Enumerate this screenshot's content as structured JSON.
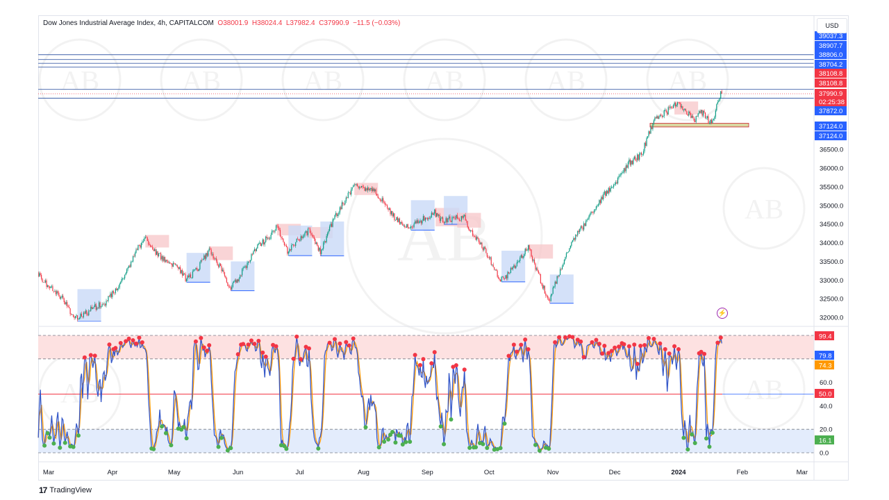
{
  "header": {
    "symbol": "Dow Jones Industrial Average Index, 4h, CAPITALCOM",
    "open": "O38001.9",
    "high": "H38024.4",
    "low": "L37982.4",
    "close": "C37990.9",
    "change": "−11.5 (−0.03%)"
  },
  "currency_button": "USD",
  "watermark_text": "AB",
  "branding": "TradingView",
  "colors": {
    "up": "#089981",
    "down": "#f23645",
    "blue_label": "#2962ff",
    "red_label": "#f23645",
    "orange": "#ff9800",
    "green": "#4caf50",
    "supply_zone": "#f7c5c8",
    "demand_zone": "#c9daf8"
  },
  "chart_data": {
    "type": "candlestick",
    "interval": "4h",
    "price_axis": {
      "ylim": [
        31900,
        39100
      ],
      "ticks": [
        "32000.0",
        "32500.0",
        "33000.0",
        "33500.0",
        "34000.0",
        "34500.0",
        "35000.0",
        "35500.0",
        "36000.0",
        "36500.0"
      ]
    },
    "time_axis": {
      "ticks": [
        {
          "label": "Mar",
          "date": "2023-03-01"
        },
        {
          "label": "Apr",
          "date": "2023-04-01"
        },
        {
          "label": "May",
          "date": "2023-05-01"
        },
        {
          "label": "Jun",
          "date": "2023-06-01"
        },
        {
          "label": "Jul",
          "date": "2023-07-01"
        },
        {
          "label": "Aug",
          "date": "2023-08-01"
        },
        {
          "label": "Sep",
          "date": "2023-09-01"
        },
        {
          "label": "Oct",
          "date": "2023-10-01"
        },
        {
          "label": "Nov",
          "date": "2023-11-01"
        },
        {
          "label": "Dec",
          "date": "2023-12-01"
        },
        {
          "label": "2024",
          "date": "2024-01-01"
        },
        {
          "label": "Feb",
          "date": "2024-02-01"
        },
        {
          "label": "Mar",
          "date": "2024-03-01"
        }
      ]
    },
    "price_path": [
      [
        "2023-02-24",
        33200
      ],
      [
        "2023-03-13",
        32050
      ],
      [
        "2023-03-28",
        32300
      ],
      [
        "2023-04-17",
        34100
      ],
      [
        "2023-05-07",
        33000
      ],
      [
        "2023-05-18",
        33800
      ],
      [
        "2023-05-28",
        32800
      ],
      [
        "2023-06-20",
        34500
      ],
      [
        "2023-06-25",
        33700
      ],
      [
        "2023-07-06",
        34400
      ],
      [
        "2023-07-11",
        33800
      ],
      [
        "2023-07-27",
        35600
      ],
      [
        "2023-08-07",
        35300
      ],
      [
        "2023-08-23",
        34300
      ],
      [
        "2023-09-04",
        34900
      ],
      [
        "2023-09-09",
        34500
      ],
      [
        "2023-09-19",
        34700
      ],
      [
        "2023-10-06",
        33000
      ],
      [
        "2023-10-15",
        33500
      ],
      [
        "2023-10-20",
        33800
      ],
      [
        "2023-10-30",
        32500
      ],
      [
        "2023-11-12",
        34200
      ],
      [
        "2023-11-19",
        34800
      ],
      [
        "2023-11-29",
        35400
      ],
      [
        "2023-12-08",
        36200
      ],
      [
        "2023-12-14",
        36300
      ],
      [
        "2023-12-21",
        37400
      ],
      [
        "2023-12-30",
        37700
      ],
      [
        "2024-01-09",
        37300
      ],
      [
        "2024-01-12",
        37600
      ],
      [
        "2024-01-17",
        37200
      ],
      [
        "2024-01-22",
        37990.9
      ]
    ],
    "levels": [
      {
        "price": 39037.3,
        "label": "39037.3",
        "color": "#2962ff",
        "line": true
      },
      {
        "price": 38907.7,
        "label": "38907.7",
        "color": "#2962ff",
        "line": true
      },
      {
        "price": 38806.0,
        "label": "38806.0",
        "color": "#2962ff",
        "line": true
      },
      {
        "price": 38704.2,
        "label": "38704.2",
        "color": "#2962ff",
        "line": true
      },
      {
        "price": 38108.8,
        "label": "38108.8",
        "color": "#f23645",
        "line": true
      },
      {
        "price": 38108.8,
        "label": "38108.8",
        "color": "#f23645",
        "line": false
      },
      {
        "price": 37990.9,
        "label": "37990.9",
        "sublabel": "02:25:38",
        "color": "#f23645",
        "line": "dotted"
      },
      {
        "price": 37872.0,
        "label": "37872.0",
        "color": "#2962ff",
        "line": true
      },
      {
        "price": 37124.0,
        "label": "37124.0",
        "color": "#2962ff",
        "line": false
      },
      {
        "price": 37124.0,
        "label": "37124.0",
        "color": "#2962ff",
        "line": false
      }
    ],
    "oscillator": {
      "ylim": [
        0,
        100
      ],
      "ticks": [
        "60.0",
        "40.0",
        "20.0",
        "0.0"
      ],
      "overbought": 80,
      "oversold": 20,
      "midline": 50,
      "labels": [
        {
          "value": 99.4,
          "label": "99.4",
          "color": "#f23645"
        },
        {
          "value": 79.8,
          "label": "79.8",
          "color": "#2962ff"
        },
        {
          "value": 74.3,
          "label": "74.3",
          "color": "#ff9800"
        },
        {
          "value": 50.0,
          "label": "50.0",
          "color": "#f23645"
        },
        {
          "value": 16.1,
          "label": "16.1",
          "color": "#4caf50"
        }
      ]
    }
  }
}
